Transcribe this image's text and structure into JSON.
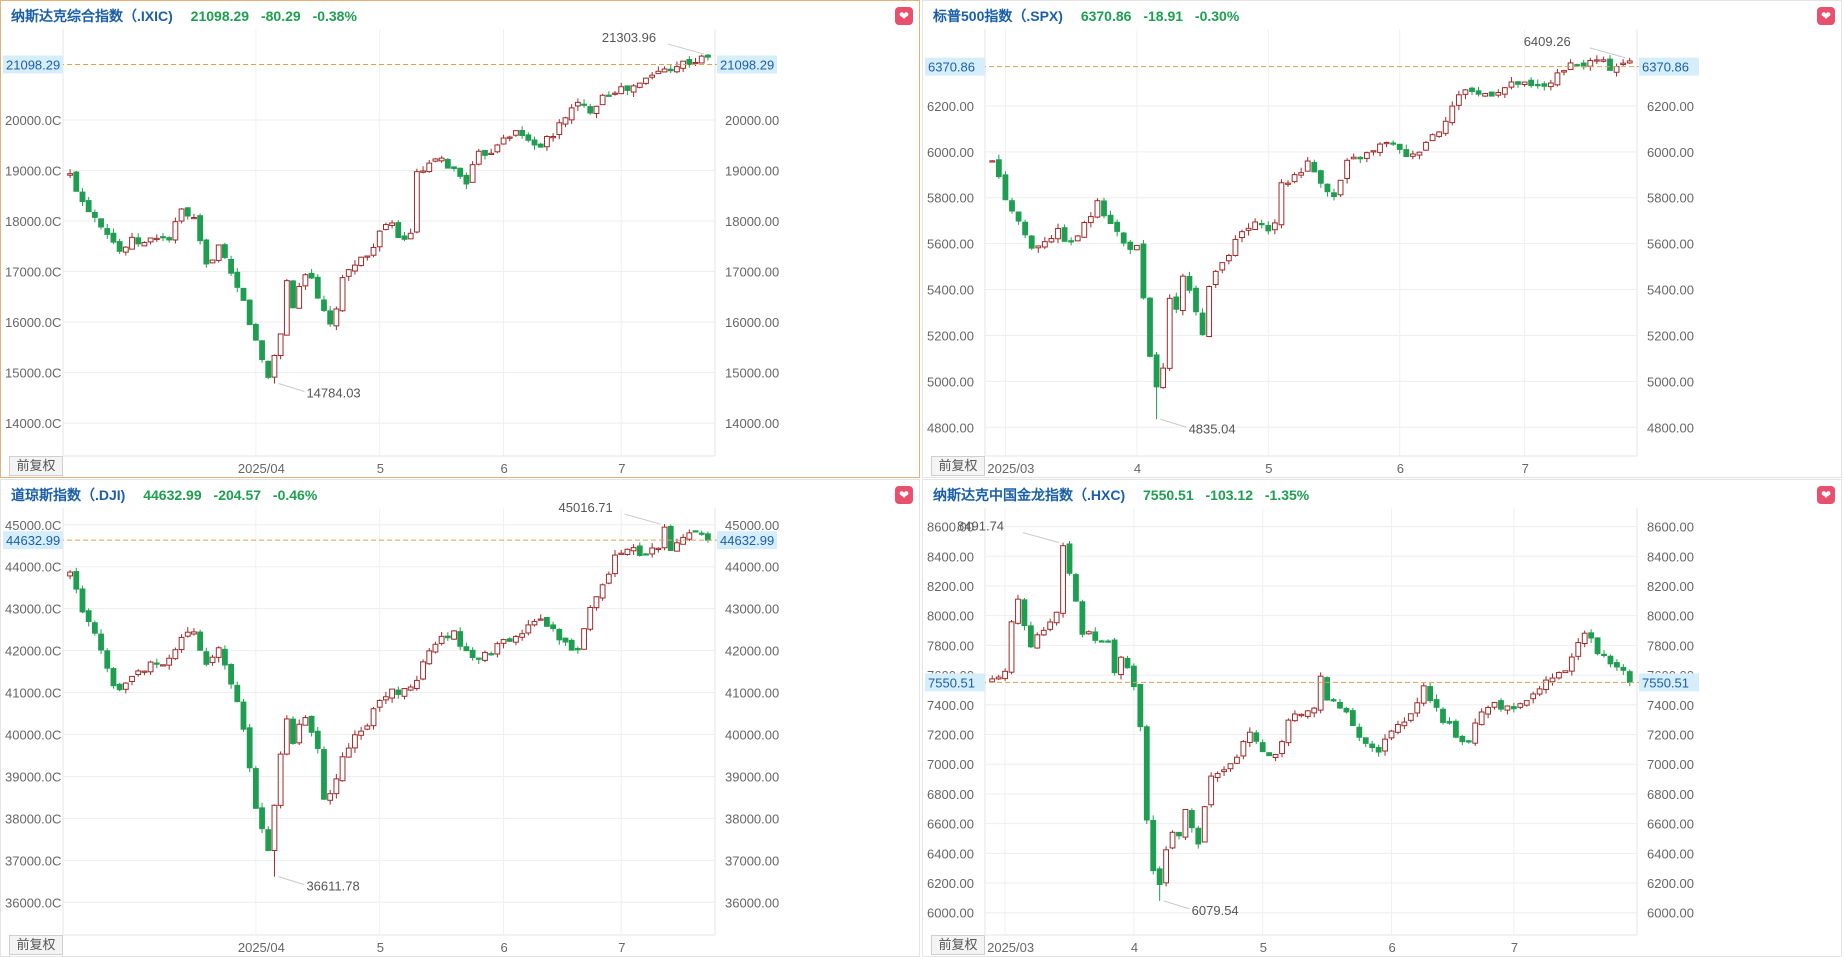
{
  "panels": [
    {
      "name": "纳斯达克综合指数（.IXIC)",
      "value": "21098.29",
      "change": "-80.29",
      "pct": "-0.38%",
      "fq_label": "前复权",
      "active": true
    },
    {
      "name": "标普500指数（.SPX)",
      "value": "6370.86",
      "change": "-18.91",
      "pct": "-0.30%",
      "fq_label": "前复权",
      "active": false
    },
    {
      "name": "道琼斯指数（.DJI)",
      "value": "44632.99",
      "change": "-204.57",
      "pct": "-0.46%",
      "fq_label": "前复权",
      "active": false
    },
    {
      "name": "纳斯达克中国金龙指数（.HXC)",
      "value": "7550.51",
      "change": "-103.12",
      "pct": "-1.35%",
      "fq_label": "前复权",
      "active": false
    }
  ],
  "colors": {
    "up": "#9e2a2a",
    "down": "#1e9e50",
    "grid": "#eeeeee",
    "current_line": "#d9a15a",
    "current_bg": "#d6eefa",
    "title": "#1a5fa8",
    "heart": "#e8506e"
  },
  "icons": {
    "favorite": "heart-icon"
  },
  "chart_data": [
    {
      "type": "candlestick",
      "title": "纳斯达克综合指数（.IXIC)",
      "y_ticks": [
        14000,
        15000,
        16000,
        17000,
        18000,
        19000,
        20000
      ],
      "y_tick_labels": [
        "14000.0C",
        "15000.0C",
        "16000.0C",
        "17000.0C",
        "18000.0C",
        "19000.0C",
        "20000.0C"
      ],
      "y_tick_labels_right": [
        "14000.00",
        "15000.00",
        "16000.00",
        "17000.00",
        "18000.00",
        "19000.00",
        "20000.00"
      ],
      "ylim": [
        13350,
        21800
      ],
      "x_ticks": [
        {
          "label": "2025/04",
          "idx": 30
        },
        {
          "label": "5",
          "idx": 50
        },
        {
          "label": "6",
          "idx": 70
        },
        {
          "label": "7",
          "idx": 89
        }
      ],
      "current": 21098.29,
      "current_label": "21098.29",
      "high": {
        "value": 21303.96,
        "label": "21303.96",
        "idx": 103
      },
      "low": {
        "value": 14784.03,
        "label": "14784.03",
        "idx": 33
      },
      "n": 104,
      "key_points": [
        [
          0,
          18900
        ],
        [
          2,
          18400
        ],
        [
          4,
          18100
        ],
        [
          6,
          17800
        ],
        [
          8,
          17400
        ],
        [
          10,
          17600
        ],
        [
          12,
          17550
        ],
        [
          14,
          17700
        ],
        [
          16,
          17650
        ],
        [
          18,
          18200
        ],
        [
          20,
          18000
        ],
        [
          22,
          17100
        ],
        [
          24,
          17500
        ],
        [
          26,
          16900
        ],
        [
          28,
          16400
        ],
        [
          30,
          15600
        ],
        [
          32,
          14900
        ],
        [
          34,
          15800
        ],
        [
          35,
          16800
        ],
        [
          36,
          16300
        ],
        [
          37,
          16700
        ],
        [
          38,
          17000
        ],
        [
          39,
          16900
        ],
        [
          40,
          16400
        ],
        [
          41,
          16200
        ],
        [
          42,
          15900
        ],
        [
          43,
          16300
        ],
        [
          44,
          16800
        ],
        [
          46,
          17200
        ],
        [
          48,
          17300
        ],
        [
          50,
          17800
        ],
        [
          52,
          17900
        ],
        [
          54,
          17600
        ],
        [
          55,
          17800
        ],
        [
          56,
          18900
        ],
        [
          58,
          19100
        ],
        [
          60,
          19200
        ],
        [
          62,
          19000
        ],
        [
          64,
          18800
        ],
        [
          66,
          19300
        ],
        [
          68,
          19400
        ],
        [
          70,
          19700
        ],
        [
          72,
          19750
        ],
        [
          74,
          19600
        ],
        [
          76,
          19500
        ],
        [
          78,
          19700
        ],
        [
          80,
          20100
        ],
        [
          82,
          20300
        ],
        [
          84,
          20200
        ],
        [
          86,
          20500
        ],
        [
          88,
          20600
        ],
        [
          90,
          20600
        ],
        [
          92,
          20700
        ],
        [
          94,
          20900
        ],
        [
          96,
          21000
        ],
        [
          98,
          21100
        ],
        [
          100,
          21150
        ],
        [
          102,
          21200
        ],
        [
          103,
          21098
        ]
      ]
    },
    {
      "type": "candlestick",
      "title": "标普500指数（.SPX)",
      "y_ticks": [
        4800,
        5000,
        5200,
        5400,
        5600,
        5800,
        6000,
        6200
      ],
      "y_tick_labels": [
        "4800.00",
        "5000.00",
        "5200.00",
        "5400.00",
        "5600.00",
        "5800.00",
        "6000.00",
        "6200.00"
      ],
      "ylim": [
        4675,
        6535
      ],
      "x_ticks": [
        {
          "label": "2025/03",
          "idx": 2
        },
        {
          "label": "4",
          "idx": 22
        },
        {
          "label": "5",
          "idx": 42
        },
        {
          "label": "6",
          "idx": 62
        },
        {
          "label": "7",
          "idx": 81
        }
      ],
      "current": 6370.86,
      "current_label": "6370.86",
      "high": {
        "value": 6409.26,
        "label": "6409.26",
        "idx": 97
      },
      "low": {
        "value": 4835.04,
        "label": "4835.04",
        "idx": 25
      },
      "n": 98,
      "key_points": [
        [
          0,
          5950
        ],
        [
          2,
          5800
        ],
        [
          4,
          5700
        ],
        [
          6,
          5580
        ],
        [
          8,
          5620
        ],
        [
          10,
          5650
        ],
        [
          12,
          5600
        ],
        [
          14,
          5680
        ],
        [
          16,
          5770
        ],
        [
          18,
          5700
        ],
        [
          20,
          5600
        ],
        [
          22,
          5580
        ],
        [
          23,
          5350
        ],
        [
          24,
          5100
        ],
        [
          25,
          4980
        ],
        [
          26,
          5050
        ],
        [
          27,
          5350
        ],
        [
          28,
          5300
        ],
        [
          29,
          5450
        ],
        [
          30,
          5380
        ],
        [
          31,
          5320
        ],
        [
          32,
          5200
        ],
        [
          33,
          5400
        ],
        [
          34,
          5480
        ],
        [
          35,
          5500
        ],
        [
          36,
          5560
        ],
        [
          38,
          5650
        ],
        [
          40,
          5680
        ],
        [
          42,
          5650
        ],
        [
          43,
          5700
        ],
        [
          44,
          5850
        ],
        [
          46,
          5900
        ],
        [
          48,
          5950
        ],
        [
          50,
          5880
        ],
        [
          52,
          5800
        ],
        [
          54,
          5950
        ],
        [
          56,
          5980
        ],
        [
          58,
          6000
        ],
        [
          60,
          6050
        ],
        [
          62,
          6000
        ],
        [
          64,
          5980
        ],
        [
          66,
          6050
        ],
        [
          68,
          6100
        ],
        [
          70,
          6200
        ],
        [
          72,
          6280
        ],
        [
          74,
          6250
        ],
        [
          76,
          6260
        ],
        [
          78,
          6280
        ],
        [
          80,
          6300
        ],
        [
          82,
          6280
        ],
        [
          84,
          6290
        ],
        [
          86,
          6330
        ],
        [
          88,
          6370
        ],
        [
          90,
          6380
        ],
        [
          92,
          6400
        ],
        [
          94,
          6370
        ],
        [
          96,
          6390
        ],
        [
          97,
          6370
        ]
      ]
    },
    {
      "type": "candlestick",
      "title": "道琼斯指数（.DJI)",
      "y_ticks": [
        36000,
        37000,
        38000,
        39000,
        40000,
        41000,
        42000,
        43000,
        44000,
        45000
      ],
      "y_tick_labels": [
        "36000.0C",
        "37000.0C",
        "38000.0C",
        "39000.0C",
        "40000.0C",
        "41000.0C",
        "42000.0C",
        "43000.0C",
        "44000.0C",
        "45000.0C"
      ],
      "y_tick_labels_right": [
        "36000.00",
        "37000.00",
        "38000.00",
        "39000.00",
        "40000.00",
        "41000.00",
        "42000.00",
        "43000.00",
        "44000.00",
        "45000.00"
      ],
      "ylim": [
        35220,
        45400
      ],
      "x_ticks": [
        {
          "label": "2025/04",
          "idx": 30
        },
        {
          "label": "5",
          "idx": 50
        },
        {
          "label": "6",
          "idx": 70
        },
        {
          "label": "7",
          "idx": 89
        }
      ],
      "current": 44632.99,
      "current_label": "44632.99",
      "high": {
        "value": 45016.71,
        "label": "45016.71",
        "idx": 96
      },
      "low": {
        "value": 36611.78,
        "label": "36611.78",
        "idx": 33
      },
      "n": 104,
      "key_points": [
        [
          0,
          43800
        ],
        [
          2,
          43000
        ],
        [
          4,
          42400
        ],
        [
          6,
          41500
        ],
        [
          8,
          41000
        ],
        [
          10,
          41300
        ],
        [
          12,
          41600
        ],
        [
          14,
          41700
        ],
        [
          16,
          41800
        ],
        [
          18,
          42300
        ],
        [
          20,
          42500
        ],
        [
          22,
          41600
        ],
        [
          24,
          42000
        ],
        [
          26,
          41200
        ],
        [
          28,
          40200
        ],
        [
          30,
          38300
        ],
        [
          32,
          37200
        ],
        [
          34,
          39500
        ],
        [
          35,
          40400
        ],
        [
          36,
          39700
        ],
        [
          37,
          40300
        ],
        [
          38,
          40500
        ],
        [
          39,
          40000
        ],
        [
          40,
          39600
        ],
        [
          41,
          38500
        ],
        [
          42,
          38600
        ],
        [
          44,
          39400
        ],
        [
          46,
          39900
        ],
        [
          48,
          40300
        ],
        [
          50,
          40800
        ],
        [
          52,
          41100
        ],
        [
          54,
          41000
        ],
        [
          56,
          41300
        ],
        [
          58,
          42000
        ],
        [
          60,
          42300
        ],
        [
          62,
          42400
        ],
        [
          64,
          42000
        ],
        [
          66,
          41800
        ],
        [
          68,
          42000
        ],
        [
          70,
          42200
        ],
        [
          72,
          42300
        ],
        [
          74,
          42600
        ],
        [
          76,
          42700
        ],
        [
          78,
          42500
        ],
        [
          80,
          42200
        ],
        [
          82,
          42000
        ],
        [
          84,
          43000
        ],
        [
          86,
          43600
        ],
        [
          88,
          44200
        ],
        [
          90,
          44500
        ],
        [
          92,
          44300
        ],
        [
          94,
          44400
        ],
        [
          96,
          44300
        ],
        [
          98,
          44500
        ],
        [
          100,
          44800
        ],
        [
          102,
          44800
        ],
        [
          103,
          44633
        ]
      ]
    },
    {
      "type": "candlestick",
      "title": "纳斯达克中国金龙指数（.HXC)",
      "y_ticks": [
        6000,
        6200,
        6400,
        6600,
        6800,
        7000,
        7200,
        7400,
        7600,
        7800,
        8000,
        8200,
        8400,
        8600
      ],
      "y_tick_labels": [
        "6000.00",
        "6200.00",
        "6400.00",
        "6600.00",
        "6800.00",
        "7000.00",
        "7200.00",
        "7400.00",
        "7600.00",
        "7800.00",
        "8000.00",
        "8200.00",
        "8400.00",
        "8600.00"
      ],
      "ylim": [
        5850,
        8725
      ],
      "x_ticks": [
        {
          "label": "2025/03",
          "idx": 2
        },
        {
          "label": "4",
          "idx": 22
        },
        {
          "label": "5",
          "idx": 42
        },
        {
          "label": "6",
          "idx": 62
        },
        {
          "label": "7",
          "idx": 81
        }
      ],
      "current": 7550.51,
      "current_label": "7550.51",
      "high": {
        "value": 8491.74,
        "label": "8491.74",
        "idx": 11
      },
      "low": {
        "value": 6079.54,
        "label": "6079.54",
        "idx": 26
      },
      "n": 100,
      "key_points": [
        [
          0,
          7550
        ],
        [
          2,
          7600
        ],
        [
          3,
          7950
        ],
        [
          4,
          8100
        ],
        [
          6,
          7800
        ],
        [
          8,
          7900
        ],
        [
          10,
          8000
        ],
        [
          11,
          8350
        ],
        [
          12,
          8300
        ],
        [
          13,
          8100
        ],
        [
          14,
          7900
        ],
        [
          16,
          7850
        ],
        [
          18,
          7800
        ],
        [
          19,
          7600
        ],
        [
          20,
          7700
        ],
        [
          21,
          7650
        ],
        [
          22,
          7500
        ],
        [
          23,
          7250
        ],
        [
          24,
          6600
        ],
        [
          25,
          6300
        ],
        [
          26,
          6200
        ],
        [
          27,
          6450
        ],
        [
          28,
          6550
        ],
        [
          29,
          6500
        ],
        [
          30,
          6700
        ],
        [
          31,
          6600
        ],
        [
          32,
          6450
        ],
        [
          33,
          6700
        ],
        [
          34,
          6900
        ],
        [
          36,
          6950
        ],
        [
          38,
          7050
        ],
        [
          40,
          7200
        ],
        [
          42,
          7100
        ],
        [
          44,
          7050
        ],
        [
          46,
          7300
        ],
        [
          48,
          7350
        ],
        [
          50,
          7400
        ],
        [
          51,
          7600
        ],
        [
          52,
          7450
        ],
        [
          54,
          7400
        ],
        [
          56,
          7250
        ],
        [
          58,
          7150
        ],
        [
          60,
          7100
        ],
        [
          62,
          7200
        ],
        [
          64,
          7300
        ],
        [
          66,
          7400
        ],
        [
          67,
          7550
        ],
        [
          68,
          7450
        ],
        [
          70,
          7300
        ],
        [
          72,
          7200
        ],
        [
          74,
          7150
        ],
        [
          76,
          7350
        ],
        [
          78,
          7400
        ],
        [
          80,
          7380
        ],
        [
          82,
          7400
        ],
        [
          84,
          7450
        ],
        [
          86,
          7550
        ],
        [
          88,
          7600
        ],
        [
          90,
          7700
        ],
        [
          92,
          7900
        ],
        [
          93,
          7850
        ],
        [
          94,
          7750
        ],
        [
          96,
          7700
        ],
        [
          98,
          7650
        ],
        [
          99,
          7550
        ]
      ]
    }
  ]
}
